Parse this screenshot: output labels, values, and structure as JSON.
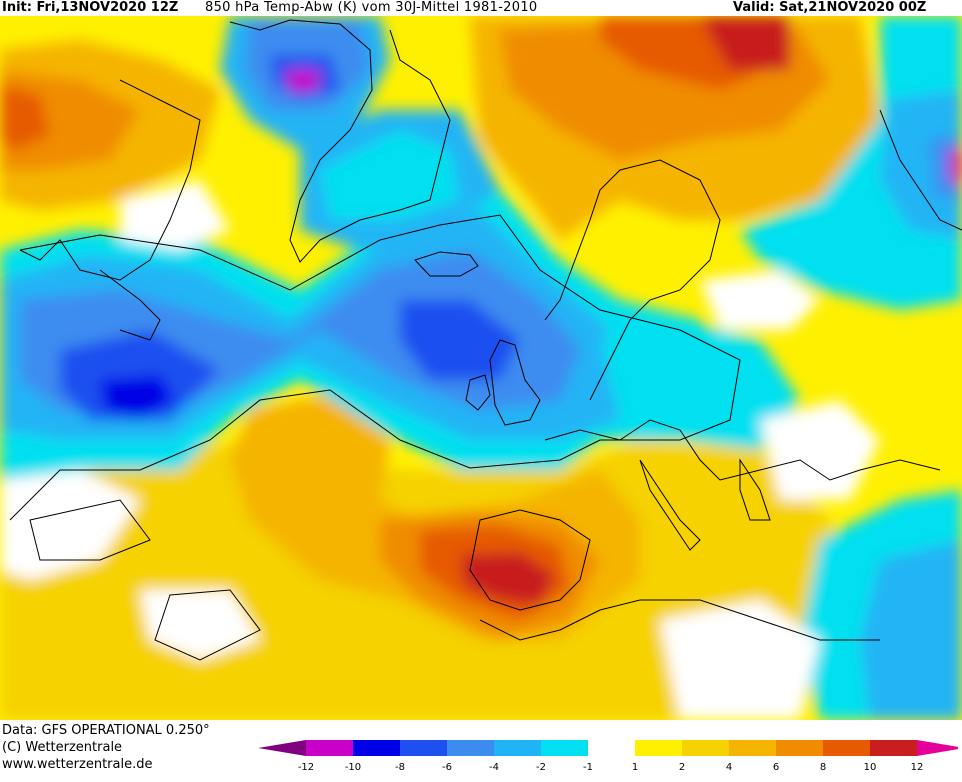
{
  "header": {
    "init": "Init: Fri,13NOV2020 12Z",
    "title": "850 hPa Temp-Abw (K) vom 30J-Mittel 1981-2010",
    "valid": "Valid: Sat,21NOV2020 00Z"
  },
  "footer": {
    "data_source": "Data: GFS OPERATIONAL 0.250°",
    "copyright": "(C) Wetterzentrale",
    "website": "www.wetterzentrale.de"
  },
  "legend": {
    "classes": [
      {
        "color": "#800080"
      },
      {
        "color": "#c800c8"
      },
      {
        "color": "#0000e6"
      },
      {
        "color": "#1e50f0"
      },
      {
        "color": "#3c8cf0"
      },
      {
        "color": "#20b4f5"
      },
      {
        "color": "#00e0f0"
      },
      {
        "color": "#ffffff"
      },
      {
        "color": "#fff000"
      },
      {
        "color": "#f5d200"
      },
      {
        "color": "#f5b400"
      },
      {
        "color": "#f08c00"
      },
      {
        "color": "#e65a00"
      },
      {
        "color": "#c81e1e"
      },
      {
        "color": "#e6009a"
      }
    ],
    "tick_labels": [
      "-12",
      "-10",
      "-8",
      "-6",
      "-4",
      "-2",
      "-1",
      "1",
      "2",
      "4",
      "6",
      "8",
      "10",
      "12"
    ]
  }
}
